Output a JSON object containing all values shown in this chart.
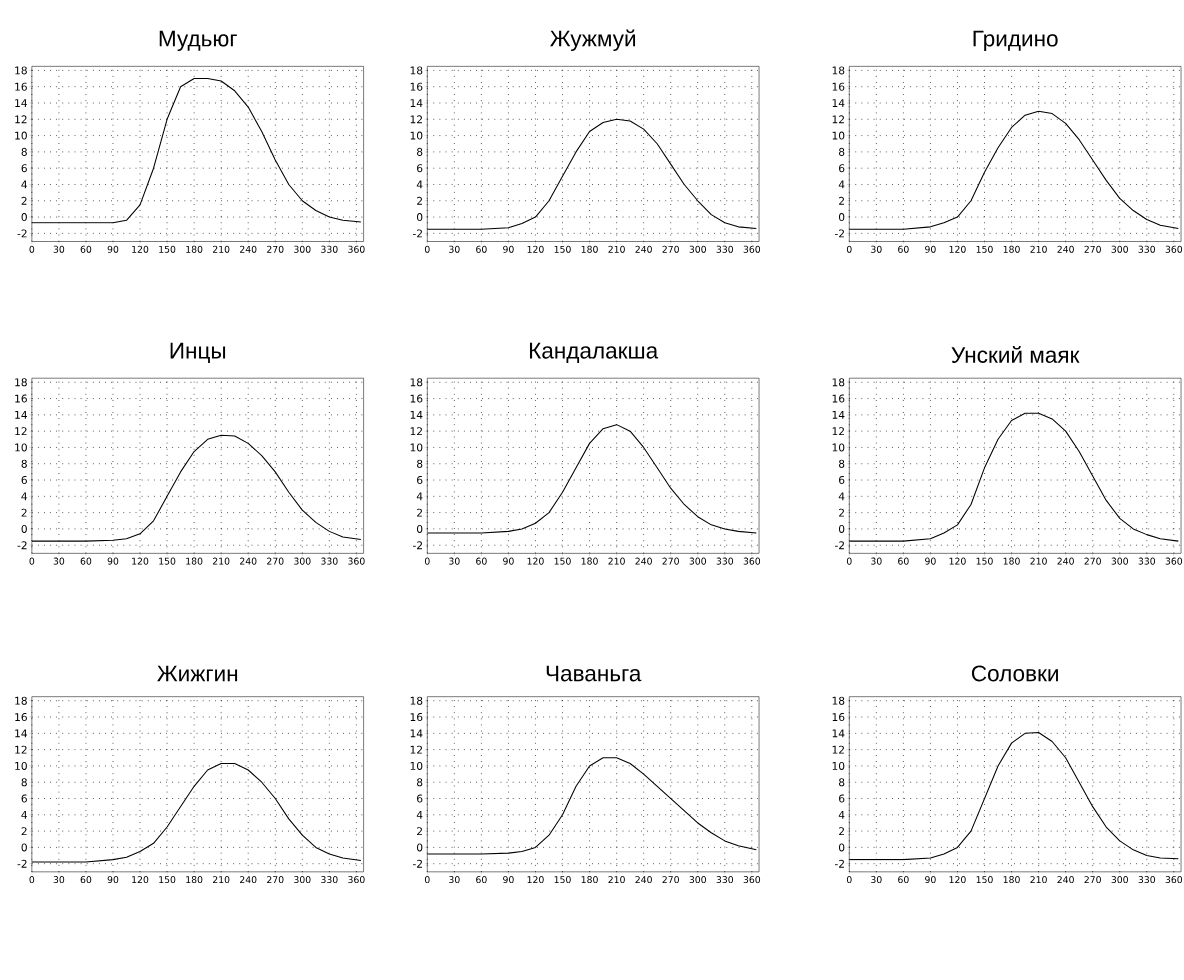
{
  "chart_data": [
    {
      "type": "line",
      "title": "Мудьюг",
      "x": [
        0,
        30,
        60,
        90,
        105,
        120,
        135,
        150,
        165,
        180,
        195,
        210,
        225,
        240,
        255,
        270,
        285,
        300,
        315,
        330,
        345,
        365
      ],
      "xlim": [
        0,
        368
      ],
      "ylim": [
        -3,
        18.5
      ],
      "xticks": [
        0,
        30,
        60,
        90,
        120,
        150,
        180,
        210,
        240,
        270,
        300,
        330,
        360
      ],
      "yticks": [
        -2,
        0,
        2,
        4,
        6,
        8,
        10,
        12,
        14,
        16,
        18
      ],
      "grid": true,
      "series": [
        {
          "color": "#000000",
          "values": [
            -0.7,
            -0.7,
            -0.7,
            -0.7,
            -0.4,
            1.5,
            6,
            12,
            16,
            17,
            17,
            16.7,
            15.5,
            13.5,
            10.5,
            7,
            4,
            2,
            0.8,
            0,
            -0.4,
            -0.6
          ]
        }
      ]
    },
    {
      "type": "line",
      "title": "Жужмуй",
      "x": [
        0,
        30,
        60,
        90,
        105,
        120,
        135,
        150,
        165,
        180,
        195,
        210,
        225,
        240,
        255,
        270,
        285,
        300,
        315,
        330,
        345,
        365
      ],
      "xlim": [
        0,
        368
      ],
      "ylim": [
        -3,
        18.5
      ],
      "xticks": [
        0,
        30,
        60,
        90,
        120,
        150,
        180,
        210,
        240,
        270,
        300,
        330,
        360
      ],
      "yticks": [
        -2,
        0,
        2,
        4,
        6,
        8,
        10,
        12,
        14,
        16,
        18
      ],
      "grid": true,
      "series": [
        {
          "color": "#000000",
          "values": [
            -1.5,
            -1.5,
            -1.5,
            -1.3,
            -0.8,
            0,
            2,
            5,
            8,
            10.5,
            11.6,
            12,
            11.8,
            10.8,
            9,
            6.5,
            4,
            2,
            0.3,
            -0.7,
            -1.2,
            -1.4
          ]
        }
      ]
    },
    {
      "type": "line",
      "title": "Гридино",
      "x": [
        0,
        30,
        60,
        90,
        105,
        120,
        135,
        150,
        165,
        180,
        195,
        210,
        225,
        240,
        255,
        270,
        285,
        300,
        315,
        330,
        345,
        365
      ],
      "xlim": [
        0,
        368
      ],
      "ylim": [
        -3,
        18.5
      ],
      "xticks": [
        0,
        30,
        60,
        90,
        120,
        150,
        180,
        210,
        240,
        270,
        300,
        330,
        360
      ],
      "yticks": [
        -2,
        0,
        2,
        4,
        6,
        8,
        10,
        12,
        14,
        16,
        18
      ],
      "grid": true,
      "series": [
        {
          "color": "#000000",
          "values": [
            -1.5,
            -1.5,
            -1.5,
            -1.2,
            -0.7,
            0,
            2,
            5.5,
            8.5,
            11,
            12.5,
            13,
            12.7,
            11.5,
            9.5,
            7,
            4.5,
            2.3,
            0.8,
            -0.3,
            -1,
            -1.4
          ]
        }
      ]
    },
    {
      "type": "line",
      "title": "Инцы",
      "x": [
        0,
        30,
        60,
        90,
        105,
        120,
        135,
        150,
        165,
        180,
        195,
        210,
        225,
        240,
        255,
        270,
        285,
        300,
        315,
        330,
        345,
        365
      ],
      "xlim": [
        0,
        368
      ],
      "ylim": [
        -3,
        18.5
      ],
      "xticks": [
        0,
        30,
        60,
        90,
        120,
        150,
        180,
        210,
        240,
        270,
        300,
        330,
        360
      ],
      "yticks": [
        -2,
        0,
        2,
        4,
        6,
        8,
        10,
        12,
        14,
        16,
        18
      ],
      "grid": true,
      "series": [
        {
          "color": "#000000",
          "values": [
            -1.5,
            -1.5,
            -1.5,
            -1.4,
            -1.2,
            -0.6,
            1,
            4,
            7,
            9.5,
            11,
            11.5,
            11.4,
            10.5,
            9,
            7,
            4.5,
            2.3,
            0.8,
            -0.3,
            -1,
            -1.3
          ]
        }
      ]
    },
    {
      "type": "line",
      "title": "Кандалакша",
      "x": [
        0,
        30,
        60,
        90,
        105,
        120,
        135,
        150,
        165,
        180,
        195,
        210,
        225,
        240,
        255,
        270,
        285,
        300,
        315,
        330,
        345,
        365
      ],
      "xlim": [
        0,
        368
      ],
      "ylim": [
        -3,
        18.5
      ],
      "xticks": [
        0,
        30,
        60,
        90,
        120,
        150,
        180,
        210,
        240,
        270,
        300,
        330,
        360
      ],
      "yticks": [
        -2,
        0,
        2,
        4,
        6,
        8,
        10,
        12,
        14,
        16,
        18
      ],
      "grid": true,
      "series": [
        {
          "color": "#000000",
          "values": [
            -0.5,
            -0.5,
            -0.5,
            -0.3,
            0,
            0.7,
            2,
            4.5,
            7.5,
            10.5,
            12.3,
            12.8,
            12,
            10,
            7.5,
            5,
            3,
            1.5,
            0.5,
            0,
            -0.3,
            -0.5
          ]
        }
      ]
    },
    {
      "type": "line",
      "title": "Унский маяк",
      "x": [
        0,
        30,
        60,
        90,
        105,
        120,
        135,
        150,
        165,
        180,
        195,
        210,
        225,
        240,
        255,
        270,
        285,
        300,
        315,
        330,
        345,
        365
      ],
      "xlim": [
        0,
        368
      ],
      "ylim": [
        -3,
        18.5
      ],
      "xticks": [
        0,
        30,
        60,
        90,
        120,
        150,
        180,
        210,
        240,
        270,
        300,
        330,
        360
      ],
      "yticks": [
        -2,
        0,
        2,
        4,
        6,
        8,
        10,
        12,
        14,
        16,
        18
      ],
      "grid": true,
      "series": [
        {
          "color": "#000000",
          "values": [
            -1.5,
            -1.5,
            -1.5,
            -1.2,
            -0.5,
            0.5,
            3,
            7.5,
            11,
            13.3,
            14.2,
            14.2,
            13.5,
            12,
            9.5,
            6.5,
            3.5,
            1.3,
            0,
            -0.7,
            -1.2,
            -1.5
          ]
        }
      ]
    },
    {
      "type": "line",
      "title": "Жижгин",
      "x": [
        0,
        30,
        60,
        90,
        105,
        120,
        135,
        150,
        165,
        180,
        195,
        210,
        225,
        240,
        255,
        270,
        285,
        300,
        315,
        330,
        345,
        365
      ],
      "xlim": [
        0,
        368
      ],
      "ylim": [
        -3,
        18.5
      ],
      "xticks": [
        0,
        30,
        60,
        90,
        120,
        150,
        180,
        210,
        240,
        270,
        300,
        330,
        360
      ],
      "yticks": [
        -2,
        0,
        2,
        4,
        6,
        8,
        10,
        12,
        14,
        16,
        18
      ],
      "grid": true,
      "series": [
        {
          "color": "#000000",
          "values": [
            -1.8,
            -1.8,
            -1.8,
            -1.5,
            -1.2,
            -0.5,
            0.5,
            2.5,
            5,
            7.5,
            9.5,
            10.3,
            10.3,
            9.5,
            8,
            6,
            3.5,
            1.5,
            0,
            -0.8,
            -1.3,
            -1.6
          ]
        }
      ]
    },
    {
      "type": "line",
      "title": "Чаваньга",
      "x": [
        0,
        30,
        60,
        90,
        105,
        120,
        135,
        150,
        165,
        180,
        195,
        210,
        225,
        240,
        255,
        270,
        285,
        300,
        315,
        330,
        345,
        365
      ],
      "xlim": [
        0,
        368
      ],
      "ylim": [
        -3,
        18.5
      ],
      "xticks": [
        0,
        30,
        60,
        90,
        120,
        150,
        180,
        210,
        240,
        270,
        300,
        330,
        360
      ],
      "yticks": [
        -2,
        0,
        2,
        4,
        6,
        8,
        10,
        12,
        14,
        16,
        18
      ],
      "grid": true,
      "series": [
        {
          "color": "#000000",
          "values": [
            -0.8,
            -0.8,
            -0.8,
            -0.7,
            -0.5,
            0,
            1.5,
            4,
            7.5,
            10,
            11,
            11,
            10.3,
            9,
            7.5,
            6,
            4.5,
            3,
            1.8,
            0.8,
            0.2,
            -0.3
          ]
        }
      ]
    },
    {
      "type": "line",
      "title": "Соловки",
      "x": [
        0,
        30,
        60,
        90,
        105,
        120,
        135,
        150,
        165,
        180,
        195,
        210,
        225,
        240,
        255,
        270,
        285,
        300,
        315,
        330,
        345,
        365
      ],
      "xlim": [
        0,
        368
      ],
      "ylim": [
        -3,
        18.5
      ],
      "xticks": [
        0,
        30,
        60,
        90,
        120,
        150,
        180,
        210,
        240,
        270,
        300,
        330,
        360
      ],
      "yticks": [
        -2,
        0,
        2,
        4,
        6,
        8,
        10,
        12,
        14,
        16,
        18
      ],
      "grid": true,
      "series": [
        {
          "color": "#000000",
          "values": [
            -1.5,
            -1.5,
            -1.5,
            -1.3,
            -0.8,
            0,
            2,
            6,
            10,
            12.8,
            14,
            14.1,
            13,
            11,
            8,
            5,
            2.5,
            0.8,
            -0.3,
            -1,
            -1.3,
            -1.4
          ]
        }
      ]
    }
  ]
}
